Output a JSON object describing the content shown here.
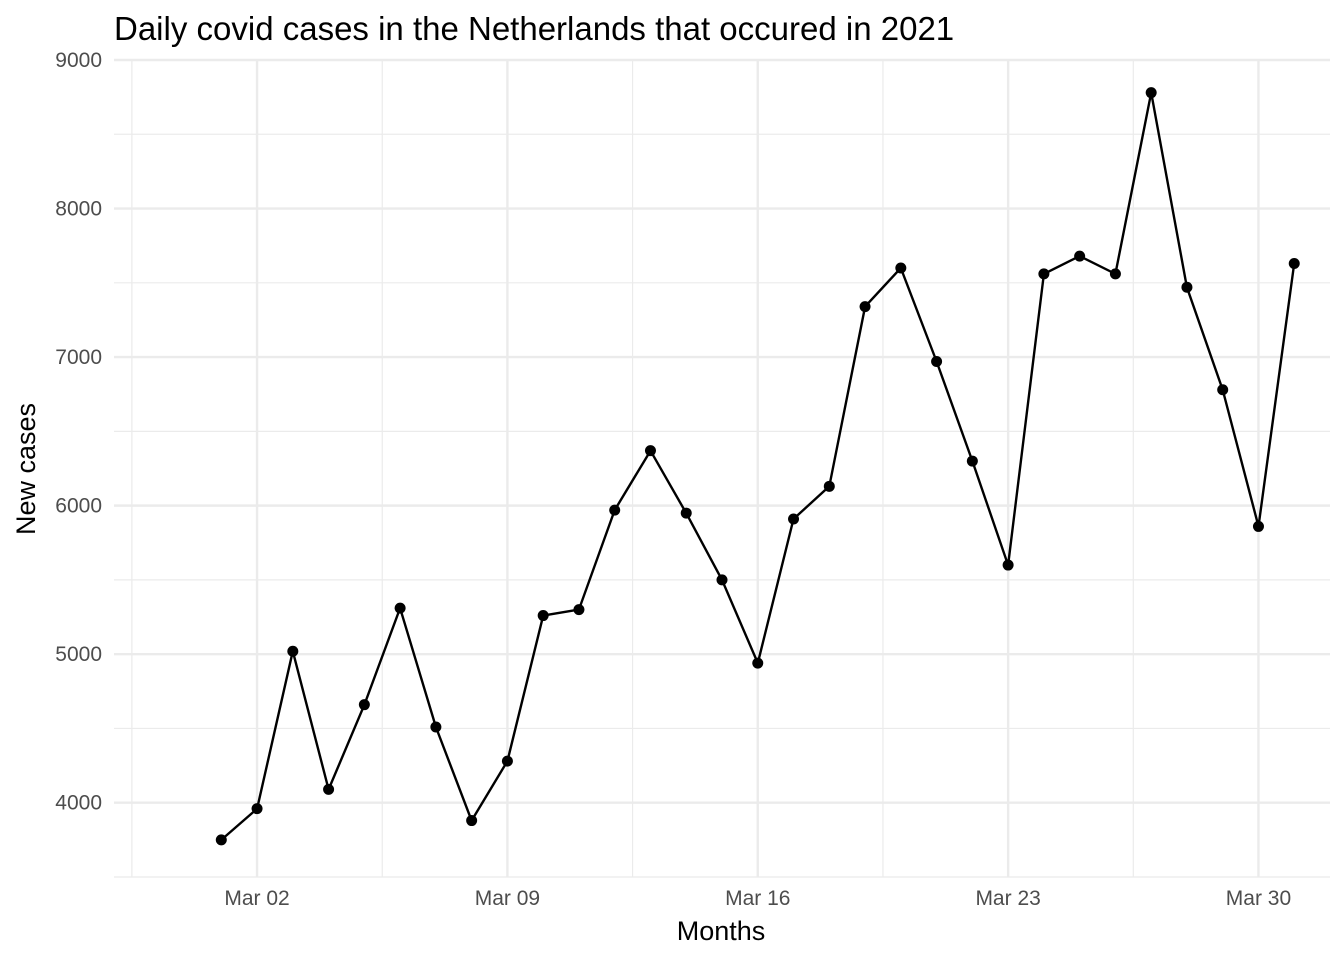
{
  "chart_data": {
    "type": "line",
    "title": "Daily covid cases in the Netherlands that occured in 2021",
    "xlabel": "Months",
    "ylabel": "New cases",
    "x_tick_labels": [
      {
        "label": "Mar 02",
        "date": "2021-03-02"
      },
      {
        "label": "Mar 09",
        "date": "2021-03-09"
      },
      {
        "label": "Mar 16",
        "date": "2021-03-16"
      },
      {
        "label": "Mar 23",
        "date": "2021-03-23"
      },
      {
        "label": "Mar 30",
        "date": "2021-03-30"
      }
    ],
    "y_ticks": [
      4000,
      5000,
      6000,
      7000,
      8000,
      9000
    ],
    "xlim": [
      "2021-02-26",
      "2021-04-01"
    ],
    "ylim": [
      3500,
      9000
    ],
    "grid": true,
    "x": [
      "2021-03-01",
      "2021-03-02",
      "2021-03-03",
      "2021-03-04",
      "2021-03-05",
      "2021-03-06",
      "2021-03-07",
      "2021-03-08",
      "2021-03-09",
      "2021-03-10",
      "2021-03-11",
      "2021-03-12",
      "2021-03-13",
      "2021-03-14",
      "2021-03-15",
      "2021-03-16",
      "2021-03-17",
      "2021-03-18",
      "2021-03-19",
      "2021-03-20",
      "2021-03-21",
      "2021-03-22",
      "2021-03-23",
      "2021-03-24",
      "2021-03-25",
      "2021-03-26",
      "2021-03-27",
      "2021-03-28",
      "2021-03-29",
      "2021-03-30",
      "2021-03-31"
    ],
    "series": [
      {
        "color": "#000000",
        "values": [
          3750,
          3960,
          5020,
          4090,
          4660,
          5310,
          4510,
          3880,
          4280,
          5260,
          5300,
          5970,
          6370,
          5950,
          5500,
          4940,
          5910,
          6130,
          7340,
          7600,
          6970,
          6300,
          5600,
          7560,
          7680,
          7560,
          8780,
          7470,
          6780,
          5860,
          7630
        ]
      }
    ]
  }
}
